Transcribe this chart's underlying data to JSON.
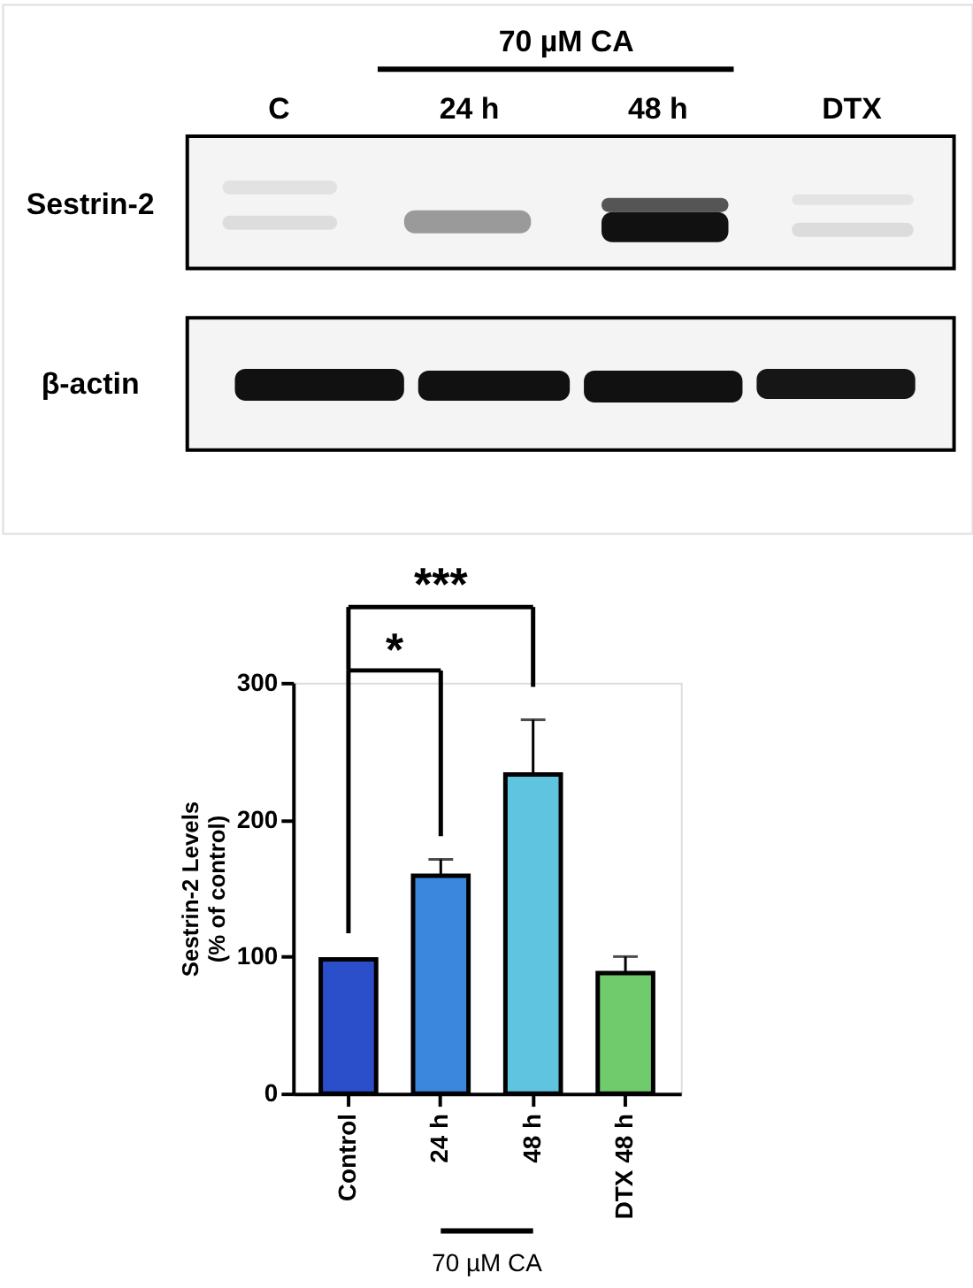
{
  "chart_data": {
    "type": "bar",
    "categories": [
      "Control",
      "24 h",
      "48 h",
      "DTX 48 h"
    ],
    "values": [
      98,
      159,
      233,
      88
    ],
    "errors": [
      null,
      12,
      40,
      12
    ],
    "colors": [
      "#2b4fcb",
      "#3b87de",
      "#5fc4e0",
      "#70cb6c"
    ],
    "ylabel": "Sestrin-2 Levels\n(% of control)",
    "ylim": [
      0,
      300
    ],
    "yticks": [
      0,
      100,
      200,
      300
    ],
    "grid": false,
    "annotations": [
      "70 µM CA",
      "C",
      "24 h",
      "48 h",
      "DTX",
      "Sestrin-2",
      "β-actin",
      "*",
      "***",
      "70 µM CA"
    ]
  }
}
